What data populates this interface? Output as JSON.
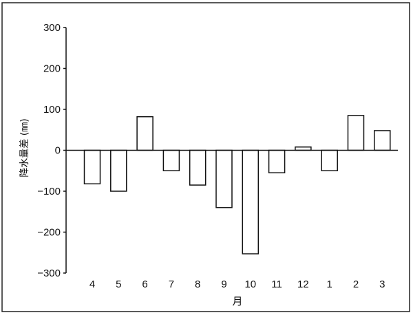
{
  "chart_data": {
    "type": "bar",
    "title": "",
    "xlabel": "月",
    "ylabel": "降水量差 (㎜)",
    "ylim": [
      -300,
      300
    ],
    "yticks": [
      300,
      200,
      100,
      0,
      -100,
      -200,
      -300
    ],
    "ytick_labels": [
      "300",
      "200",
      "100",
      "0",
      "−100",
      "−200",
      "−300"
    ],
    "grid": false,
    "categories": [
      "4",
      "5",
      "6",
      "7",
      "8",
      "9",
      "10",
      "11",
      "12",
      "1",
      "2",
      "3"
    ],
    "values": [
      -82,
      -100,
      82,
      -50,
      -85,
      -140,
      -253,
      -55,
      8,
      -50,
      85,
      48
    ],
    "colors": {
      "bar_fill": "#ffffff",
      "stroke": "#111111",
      "frame": "#222222"
    }
  }
}
